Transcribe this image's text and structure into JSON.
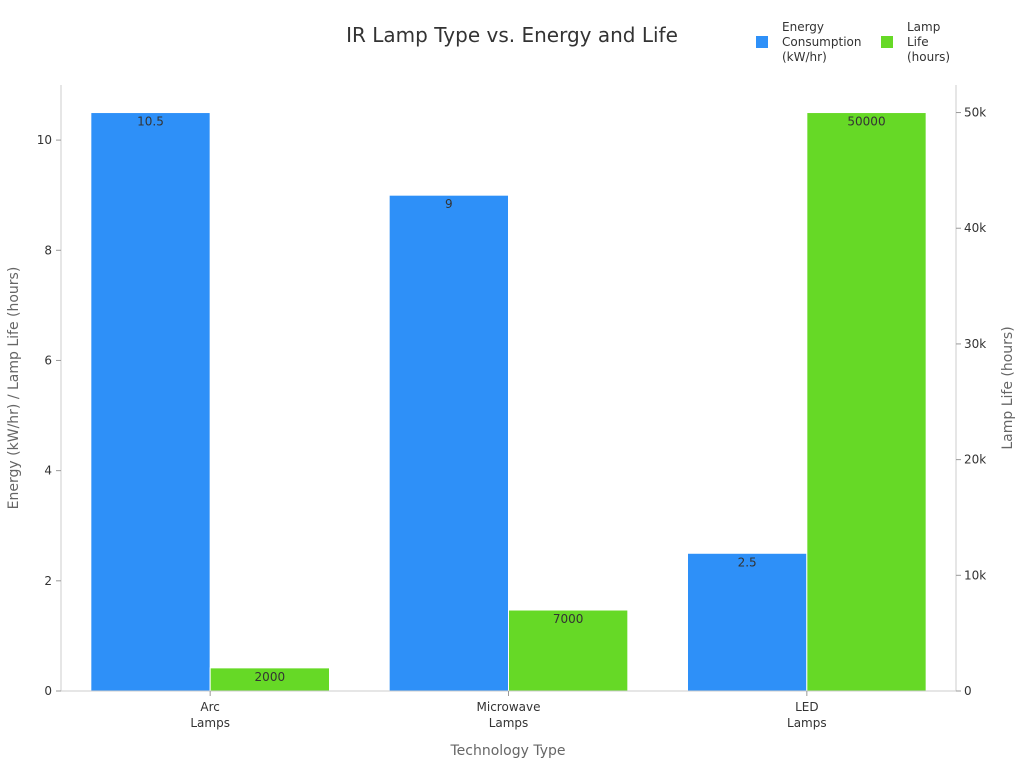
{
  "chart_data": {
    "type": "bar",
    "title": "IR Lamp Type vs. Energy and Life",
    "xlabel": "Technology Type",
    "ylabel": "Energy (kW/hr) / Lamp Life (hours)",
    "y2label": "Lamp Life (hours)",
    "categories": [
      [
        "Arc",
        "Lamps"
      ],
      [
        "Microwave",
        "Lamps"
      ],
      [
        "LED",
        "Lamps"
      ]
    ],
    "series": [
      {
        "name": [
          "Energy",
          "Consumption",
          "(kW/hr)"
        ],
        "axis": "left",
        "color": "#2e90f8",
        "values": [
          10.5,
          9,
          2.5
        ],
        "labels": [
          "10.5",
          "9",
          "2.5"
        ]
      },
      {
        "name": [
          "Lamp",
          "Life",
          "(hours)"
        ],
        "axis": "right",
        "color": "#66d926",
        "values": [
          2000,
          7000,
          50000
        ],
        "labels": [
          "2000",
          "7000",
          "50000"
        ]
      }
    ],
    "ylim": [
      0,
      11
    ],
    "yticks": [
      0,
      2,
      4,
      6,
      8,
      10
    ],
    "y2lim": [
      0,
      52380.95
    ],
    "y2ticks": [
      0,
      10000,
      20000,
      30000,
      40000,
      50000
    ],
    "y2ticklabels": [
      "0",
      "10k",
      "20k",
      "30k",
      "40k",
      "50k"
    ],
    "legend_position": "top-right",
    "grid": false
  }
}
